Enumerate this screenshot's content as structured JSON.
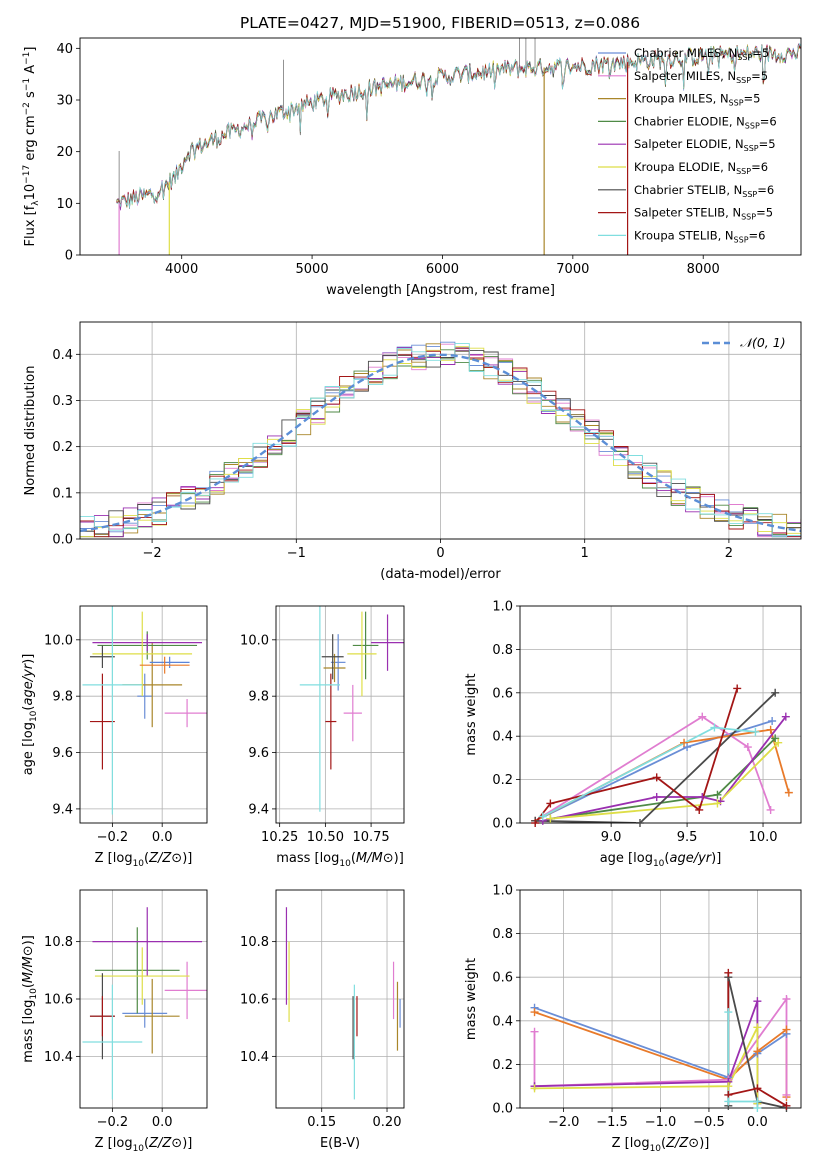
{
  "title": "PLATE=0427, MJD=51900, FIBERID=0513, z=0.086",
  "colors": {
    "Chabrier MILES": "#6a8ed6",
    "Salpeter MILES": "#e07dd0",
    "Kroupa MILES": "#a9862a",
    "Chabrier ELODIE": "#4f8a46",
    "Salpeter ELODIE": "#9a2fb0",
    "Kroupa ELODIE": "#dede47",
    "Chabrier STELIB": "#4a4a4a",
    "Salpeter STELIB": "#a31616",
    "Kroupa STELIB": "#80dedf",
    "orange": "#e87a2a",
    "pink": "#e48bbf",
    "lime": "#cbe65a",
    "blue": "#5b84d8",
    "purple": "#8b2fa6",
    "darkred": "#a81d1d",
    "gray": "#555555",
    "cyan": "#7fdbe0",
    "ndist": "#5b8ed6"
  },
  "chart_data": [
    {
      "type": "line",
      "title": "PLATE=0427, MJD=51900, FIBERID=0513, z=0.086",
      "xlabel": "wavelength [Angstrom, rest frame]",
      "ylabel": "Flux [f_λ10^-17 erg cm^-2 s^-1 A^-1]",
      "xlim": [
        3220,
        8750
      ],
      "ylim": [
        0,
        42
      ],
      "xticks": [
        "4000",
        "5000",
        "6000",
        "7000",
        "8000"
      ],
      "yticks": [
        "0",
        "10",
        "20",
        "30",
        "40"
      ],
      "grid": false,
      "legend_position": "right",
      "legend": [
        {
          "label": "Chabrier MILES, N",
          "sub": "SSP",
          "suffix": "=5"
        },
        {
          "label": "Salpeter MILES, N",
          "sub": "SSP",
          "suffix": "=5"
        },
        {
          "label": "Kroupa MILES, N",
          "sub": "SSP",
          "suffix": "=5"
        },
        {
          "label": "Chabrier ELODIE, N",
          "sub": "SSP",
          "suffix": "=6"
        },
        {
          "label": "Salpeter ELODIE, N",
          "sub": "SSP",
          "suffix": "=5"
        },
        {
          "label": "Kroupa ELODIE, N",
          "sub": "SSP",
          "suffix": "=6"
        },
        {
          "label": "Chabrier STELIB, N",
          "sub": "SSP",
          "suffix": "=6"
        },
        {
          "label": "Salpeter STELIB, N",
          "sub": "SSP",
          "suffix": "=5"
        },
        {
          "label": "Kroupa STELIB, N",
          "sub": "SSP",
          "suffix": "=6"
        }
      ],
      "continuum": [
        [
          3500,
          10
        ],
        [
          3800,
          12
        ],
        [
          3950,
          15
        ],
        [
          4050,
          20
        ],
        [
          4300,
          23
        ],
        [
          4800,
          28
        ],
        [
          5200,
          31
        ],
        [
          5600,
          33
        ],
        [
          6000,
          34.5
        ],
        [
          6500,
          36
        ],
        [
          7000,
          36.5
        ],
        [
          7500,
          37.5
        ],
        [
          8000,
          38.5
        ],
        [
          8400,
          39
        ]
      ],
      "drops": [
        {
          "x": 3520,
          "series": "Salpeter MILES",
          "to": 0
        },
        {
          "x": 3905,
          "series": "Kroupa ELODIE",
          "to": 0
        },
        {
          "x": 6780,
          "series": "Kroupa MILES",
          "to": 0
        },
        {
          "x": 7420,
          "series": "Salpeter STELIB",
          "to": 0
        }
      ]
    },
    {
      "type": "step",
      "xlabel": "(data-model)/error",
      "ylabel": "Normed distribution",
      "xlim": [
        -2.5,
        2.5
      ],
      "ylim": [
        0,
        0.47
      ],
      "xticks": [
        "−2",
        "−1",
        "0",
        "1",
        "2"
      ],
      "yticks": [
        "0.0",
        "0.1",
        "0.2",
        "0.3",
        "0.4"
      ],
      "grid": true,
      "legend": [
        {
          "label": "𝒩(0, 1)"
        }
      ],
      "legend_position": "top-right"
    },
    {
      "type": "errorbar",
      "xlabel": "Z [log10(Z/Z⊙)]",
      "ylabel": "age [log10(age/yr)]",
      "xlim": [
        -0.33,
        0.18
      ],
      "ylim": [
        9.35,
        10.12
      ],
      "xticks": [
        "−0.2",
        "0.0"
      ],
      "yticks": [
        "9.4",
        "9.6",
        "9.8",
        "10.0"
      ],
      "grid": true,
      "points": [
        {
          "c": "Chabrier MILES",
          "x": -0.07,
          "y": 9.8,
          "xe": 0.03,
          "ye": 0.08
        },
        {
          "c": "Salpeter MILES",
          "x": 0.1,
          "y": 9.74,
          "xe": 0.09,
          "ye": 0.05
        },
        {
          "c": "Kroupa MILES",
          "x": -0.04,
          "y": 9.84,
          "xe": 0.12,
          "ye": 0.15
        },
        {
          "c": "Chabrier ELODIE",
          "x": -0.06,
          "y": 9.98,
          "xe": 0.2,
          "ye": 0.05
        },
        {
          "c": "Salpeter ELODIE",
          "x": -0.06,
          "y": 9.99,
          "xe": 0.22,
          "ye": 0.03
        },
        {
          "c": "Kroupa ELODIE",
          "x": -0.08,
          "y": 9.95,
          "xe": 0.2,
          "ye": 0.15
        },
        {
          "c": "Chabrier STELIB",
          "x": -0.24,
          "y": 9.94,
          "xe": 0.05,
          "ye": 0.04
        },
        {
          "c": "Salpeter STELIB",
          "x": -0.24,
          "y": 9.71,
          "xe": 0.05,
          "ye": 0.17
        },
        {
          "c": "Kroupa STELIB",
          "x": -0.2,
          "y": 9.84,
          "xe": 0.12,
          "ye": 0.46
        },
        {
          "c": "blue",
          "x": 0.03,
          "y": 9.92,
          "xe": 0.08,
          "ye": 0.02
        },
        {
          "c": "orange",
          "x": 0.01,
          "y": 9.91,
          "xe": 0.1,
          "ye": 0.03
        }
      ]
    },
    {
      "type": "errorbar",
      "xlabel": "mass [log10(M/M⊙)]",
      "ylabel": "",
      "xlim": [
        10.23,
        10.93
      ],
      "ylim": [
        9.35,
        10.12
      ],
      "xticks": [
        "10.25",
        "10.50",
        "10.75"
      ],
      "yticks": [
        "9.4",
        "9.6",
        "9.8",
        "10.0"
      ],
      "grid": true,
      "points": [
        {
          "c": "Chabrier MILES",
          "x": 10.57,
          "y": 9.92,
          "xe": 0.04,
          "ye": 0.1
        },
        {
          "c": "Salpeter MILES",
          "x": 10.65,
          "y": 9.74,
          "xe": 0.05,
          "ye": 0.1
        },
        {
          "c": "Kroupa MILES",
          "x": 10.55,
          "y": 9.9,
          "xe": 0.06,
          "ye": 0.05
        },
        {
          "c": "Chabrier ELODIE",
          "x": 10.72,
          "y": 9.98,
          "xe": 0.07,
          "ye": 0.12
        },
        {
          "c": "Salpeter ELODIE",
          "x": 10.84,
          "y": 9.99,
          "xe": 0.09,
          "ye": 0.1
        },
        {
          "c": "Kroupa ELODIE",
          "x": 10.7,
          "y": 9.95,
          "xe": 0.08,
          "ye": 0.15
        },
        {
          "c": "Chabrier STELIB",
          "x": 10.54,
          "y": 9.94,
          "xe": 0.06,
          "ye": 0.08
        },
        {
          "c": "Salpeter STELIB",
          "x": 10.53,
          "y": 9.71,
          "xe": 0.03,
          "ye": 0.17
        },
        {
          "c": "Kroupa STELIB",
          "x": 10.47,
          "y": 9.84,
          "xe": 0.11,
          "ye": 0.45
        }
      ]
    },
    {
      "type": "line",
      "xlabel": "age [log10(age/yr)]",
      "ylabel": "mass weight",
      "xlim": [
        8.4,
        10.25
      ],
      "ylim": [
        0,
        1
      ],
      "xticks": [
        "9.0",
        "9.5",
        "10.0"
      ],
      "yticks": [
        "0.0",
        "0.2",
        "0.4",
        "0.6",
        "0.8",
        "1.0"
      ],
      "grid": true,
      "series": [
        {
          "name": "Chabrier MILES",
          "x": [
            8.5,
            9.5,
            10.06
          ],
          "y": [
            0.01,
            0.35,
            0.47
          ]
        },
        {
          "name": "Salpeter MILES",
          "x": [
            8.5,
            9.6,
            9.9,
            10.05
          ],
          "y": [
            0.01,
            0.49,
            0.35,
            0.06
          ]
        },
        {
          "name": "orange",
          "x": [
            8.5,
            9.48,
            10.05,
            10.17
          ],
          "y": [
            0.01,
            0.37,
            0.43,
            0.14
          ]
        },
        {
          "name": "Chabrier ELODIE",
          "x": [
            8.6,
            9.7,
            10.08
          ],
          "y": [
            0.02,
            0.13,
            0.39
          ]
        },
        {
          "name": "Salpeter ELODIE",
          "x": [
            8.55,
            9.3,
            9.6,
            9.72,
            10.15
          ],
          "y": [
            0.01,
            0.12,
            0.12,
            0.1,
            0.49
          ]
        },
        {
          "name": "Kroupa ELODIE",
          "x": [
            8.6,
            9.7,
            10.1
          ],
          "y": [
            0.02,
            0.09,
            0.37
          ]
        },
        {
          "name": "Chabrier STELIB",
          "x": [
            8.5,
            9.19,
            10.08
          ],
          "y": [
            0.01,
            0.0,
            0.6
          ]
        },
        {
          "name": "Salpeter STELIB",
          "x": [
            8.5,
            8.6,
            9.3,
            9.58,
            9.83
          ],
          "y": [
            0.0,
            0.09,
            0.21,
            0.06,
            0.62
          ]
        },
        {
          "name": "Kroupa STELIB",
          "x": [
            8.55,
            9.68,
            9.95
          ],
          "y": [
            0.03,
            0.44,
            0.42
          ]
        }
      ]
    },
    {
      "type": "errorbar",
      "xlabel": "Z [log10(Z/Z⊙)]",
      "ylabel": "mass [log10(M/M⊙)]",
      "xlim": [
        -0.33,
        0.18
      ],
      "ylim": [
        10.22,
        10.98
      ],
      "xticks": [
        "−0.2",
        "0.0"
      ],
      "yticks": [
        "10.4",
        "10.6",
        "10.8"
      ],
      "grid": true,
      "points": [
        {
          "c": "Chabrier MILES",
          "x": -0.07,
          "y": 10.55,
          "xe": 0.09,
          "ye": 0.05
        },
        {
          "c": "Salpeter MILES",
          "x": 0.1,
          "y": 10.63,
          "xe": 0.09,
          "ye": 0.1
        },
        {
          "c": "Kroupa MILES",
          "x": -0.04,
          "y": 10.54,
          "xe": 0.11,
          "ye": 0.13
        },
        {
          "c": "Chabrier ELODIE",
          "x": -0.1,
          "y": 10.7,
          "xe": 0.17,
          "ye": 0.15
        },
        {
          "c": "Salpeter ELODIE",
          "x": -0.06,
          "y": 10.8,
          "xe": 0.22,
          "ye": 0.12
        },
        {
          "c": "Kroupa ELODIE",
          "x": -0.08,
          "y": 10.68,
          "xe": 0.19,
          "ye": 0.1
        },
        {
          "c": "Chabrier STELIB",
          "x": -0.24,
          "y": 10.54,
          "xe": 0.05,
          "ye": 0.15
        },
        {
          "c": "Salpeter STELIB",
          "x": -0.24,
          "y": 10.54,
          "xe": 0.05,
          "ye": 0.07
        },
        {
          "c": "Kroupa STELIB",
          "x": -0.2,
          "y": 10.45,
          "xe": 0.12,
          "ye": 0.2
        }
      ]
    },
    {
      "type": "errorbar",
      "xlabel": "E(B-V)",
      "ylabel": "",
      "xlim": [
        0.115,
        0.213
      ],
      "ylim": [
        10.22,
        10.98
      ],
      "xticks": [
        "0.15",
        "0.20"
      ],
      "yticks": [
        "10.4",
        "10.6",
        "10.8"
      ],
      "grid": true,
      "points": [
        {
          "c": "Salpeter ELODIE",
          "x": 0.123,
          "y": 10.75,
          "xe": 0,
          "ye": 0.17
        },
        {
          "c": "Kroupa ELODIE",
          "x": 0.125,
          "y": 10.66,
          "xe": 0,
          "ye": 0.14
        },
        {
          "c": "Chabrier STELIB",
          "x": 0.174,
          "y": 10.5,
          "xe": 0,
          "ye": 0.11
        },
        {
          "c": "Kroupa STELIB",
          "x": 0.175,
          "y": 10.45,
          "xe": 0,
          "ye": 0.2
        },
        {
          "c": "Salpeter STELIB",
          "x": 0.177,
          "y": 10.54,
          "xe": 0,
          "ye": 0.07
        },
        {
          "c": "Salpeter MILES",
          "x": 0.205,
          "y": 10.63,
          "xe": 0,
          "ye": 0.1
        },
        {
          "c": "Kroupa MILES",
          "x": 0.208,
          "y": 10.54,
          "xe": 0,
          "ye": 0.12
        },
        {
          "c": "Chabrier MILES",
          "x": 0.21,
          "y": 10.55,
          "xe": 0,
          "ye": 0.05
        }
      ]
    },
    {
      "type": "line",
      "xlabel": "Z [log10(Z/Z⊙)]",
      "ylabel": "mass weight",
      "xlim": [
        -2.45,
        0.45
      ],
      "ylim": [
        0,
        1
      ],
      "xticks": [
        "−2.0",
        "−1.5",
        "−1.0",
        "−0.5",
        "0.0"
      ],
      "yticks": [
        "0.0",
        "0.2",
        "0.4",
        "0.6",
        "0.8",
        "1.0"
      ],
      "grid": true,
      "series": [
        {
          "name": "Chabrier MILES",
          "x": [
            -2.3,
            -0.3,
            0.0,
            0.3
          ],
          "y": [
            0.46,
            0.14,
            0.25,
            0.34
          ]
        },
        {
          "name": "orange",
          "x": [
            -2.3,
            -0.3,
            0.0,
            0.3,
            0.3
          ],
          "y": [
            0.44,
            0.13,
            0.26,
            0.36,
            0.05
          ]
        },
        {
          "name": "Salpeter MILES",
          "x": [
            -2.3,
            -2.3,
            -0.3,
            0.3,
            0.3
          ],
          "y": [
            0.35,
            0.1,
            0.13,
            0.5,
            0.06
          ]
        },
        {
          "name": "Salpeter ELODIE",
          "x": [
            -2.3,
            -0.3,
            0.0,
            0.0
          ],
          "y": [
            0.1,
            0.12,
            0.49,
            0.02
          ]
        },
        {
          "name": "Kroupa ELODIE",
          "x": [
            -2.3,
            -0.3,
            0.0,
            0.0
          ],
          "y": [
            0.09,
            0.1,
            0.37,
            0.02
          ]
        },
        {
          "name": "Chabrier STELIB",
          "x": [
            -0.3,
            -0.3,
            0.0,
            0.3
          ],
          "y": [
            0.01,
            0.6,
            0.03,
            0.0
          ]
        },
        {
          "name": "Salpeter STELIB",
          "x": [
            -0.3,
            -0.3,
            0.0,
            0.3
          ],
          "y": [
            0.62,
            0.06,
            0.09,
            0.01
          ]
        },
        {
          "name": "Kroupa STELIB",
          "x": [
            -0.3,
            -0.3,
            0.0,
            0.0
          ],
          "y": [
            0.44,
            0.03,
            0.03,
            0.0
          ]
        }
      ]
    }
  ]
}
